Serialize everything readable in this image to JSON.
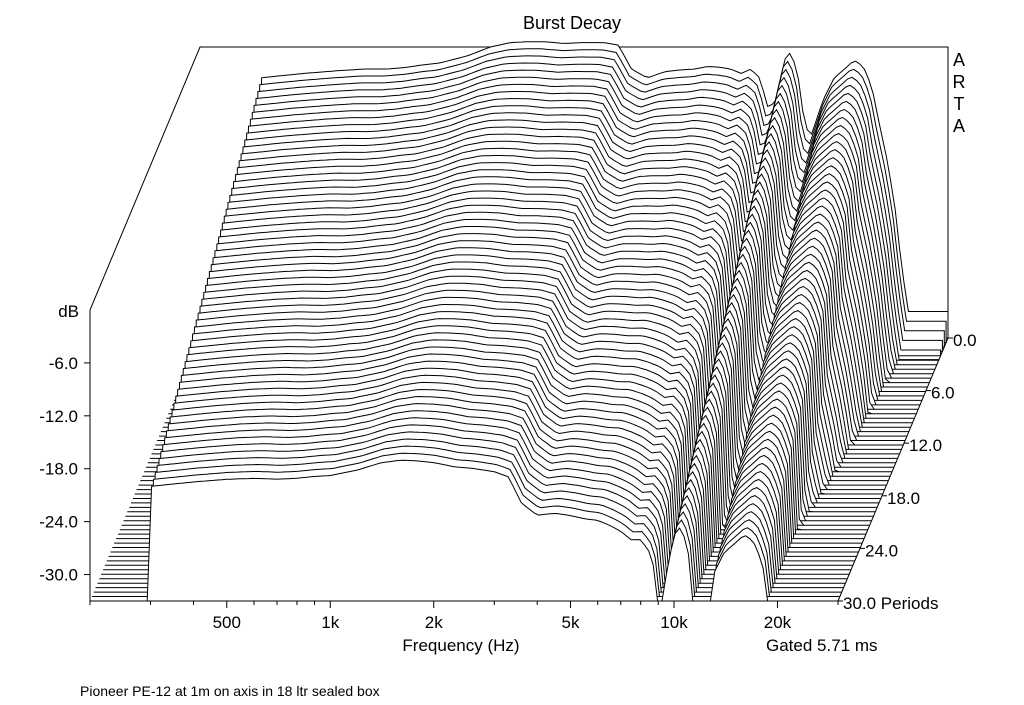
{
  "chart_data": {
    "type": "waterfall",
    "title": "Burst Decay",
    "watermark": "ARTA",
    "ylabel": "dB",
    "xlabel": "Frequency (Hz)",
    "zlabel": "Periods",
    "gating_note": "Gated 5.71 ms",
    "caption": "Pioneer PE-12 at 1m on axis in 18 ltr sealed box",
    "y_ticks": [
      "-6.0",
      "-12.0",
      "-18.0",
      "-24.0",
      "-30.0"
    ],
    "y_range": [
      -33,
      0
    ],
    "x_ticks": [
      {
        "label": "500",
        "value": 500
      },
      {
        "label": "1k",
        "value": 1000
      },
      {
        "label": "2k",
        "value": 2000
      },
      {
        "label": "5k",
        "value": 5000
      },
      {
        "label": "10k",
        "value": 10000
      },
      {
        "label": "20k",
        "value": 20000
      }
    ],
    "x_range_hz": [
      200,
      30000
    ],
    "x_scale": "log",
    "z_ticks": [
      "0.0",
      "6.0",
      "12.0",
      "18.0",
      "24.0",
      "30.0 Periods"
    ],
    "z_range": [
      0,
      30
    ],
    "slice_count": 60,
    "line_color": "#000000",
    "background": "#ffffff",
    "response_dB": {
      "freq_hz": [
        300,
        400,
        500,
        600,
        700,
        800,
        900,
        1000,
        1200,
        1400,
        1600,
        1800,
        2000,
        2300,
        2600,
        3000,
        3300,
        3600,
        4000,
        4500,
        5000,
        5500,
        6000,
        6500,
        7000,
        7500,
        8000,
        8500,
        9000,
        9500,
        10000,
        10500,
        11000,
        11500,
        12000,
        13000,
        14000,
        15000,
        16000,
        17000,
        18000,
        19000,
        20000,
        21000,
        22000,
        23000,
        24000
      ],
      "level_dB": [
        -3.5,
        -3.0,
        -2.7,
        -2.5,
        -2.5,
        -2.3,
        -2.0,
        -1.8,
        -1.0,
        0.0,
        0.5,
        0.6,
        0.6,
        0.4,
        0.5,
        0.5,
        0.2,
        -2.5,
        -3.5,
        -2.8,
        -2.6,
        -2.5,
        -2.2,
        -2.3,
        -2.5,
        -3.0,
        -2.5,
        -3.5,
        -7.0,
        -6.0,
        -1.5,
        -0.5,
        -3.5,
        -9.0,
        -10.0,
        -6.0,
        -3.5,
        -2.5,
        -1.5,
        -2.2,
        -4.5,
        -9.0,
        -13.0,
        -18.0,
        -25.0,
        -30.0,
        -30.0
      ]
    }
  }
}
